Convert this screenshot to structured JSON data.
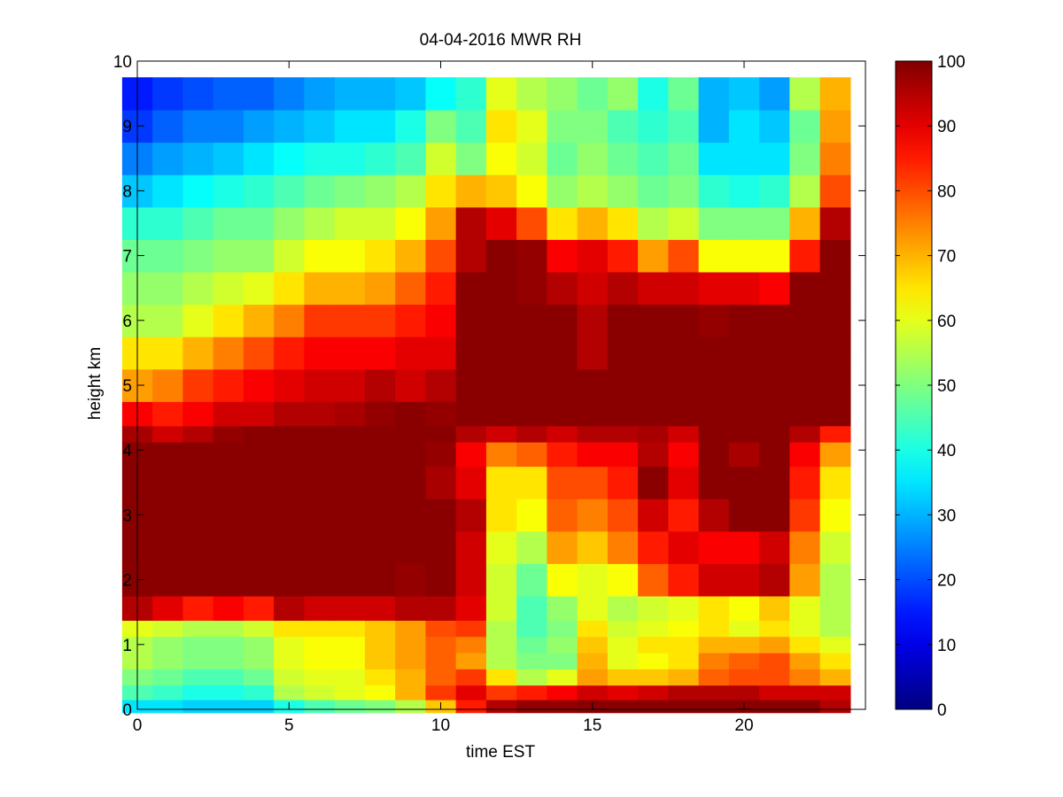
{
  "chart_data": {
    "type": "heatmap",
    "title": "04-04-2016 MWR RH",
    "xlabel": "time EST",
    "ylabel": "height km",
    "xlim": [
      0,
      24
    ],
    "ylim": [
      0,
      10
    ],
    "xticks": [
      0,
      5,
      10,
      15,
      20
    ],
    "yticks": [
      0,
      1,
      2,
      3,
      4,
      5,
      6,
      7,
      8,
      9,
      10
    ],
    "grid": false,
    "colormap": "jet",
    "colorbar": {
      "range": [
        0,
        100
      ],
      "ticks": [
        0,
        10,
        20,
        30,
        40,
        50,
        60,
        70,
        80,
        90,
        100
      ]
    },
    "x": [
      0,
      1,
      2,
      3,
      4,
      5,
      6,
      7,
      8,
      9,
      10,
      11,
      12,
      13,
      14,
      15,
      16,
      17,
      18,
      19,
      20,
      21,
      22,
      23
    ],
    "y": [
      0.05,
      0.25,
      0.5,
      0.75,
      1.0,
      1.25,
      1.5,
      2.0,
      2.5,
      3.0,
      3.5,
      4.0,
      4.25,
      4.5,
      5.0,
      5.5,
      6.0,
      6.5,
      7.0,
      7.5,
      8.0,
      8.5,
      9.0,
      9.5
    ],
    "z": [
      [
        35,
        35,
        33,
        33,
        33,
        40,
        45,
        48,
        50,
        55,
        68,
        85,
        95,
        98,
        98,
        99,
        99,
        99,
        99,
        99,
        99,
        99,
        99,
        95
      ],
      [
        45,
        43,
        40,
        40,
        42,
        55,
        58,
        60,
        62,
        70,
        82,
        90,
        82,
        85,
        88,
        92,
        90,
        92,
        95,
        95,
        95,
        92,
        92,
        92
      ],
      [
        50,
        48,
        45,
        45,
        48,
        58,
        60,
        60,
        65,
        70,
        78,
        82,
        65,
        55,
        60,
        72,
        68,
        68,
        70,
        78,
        80,
        80,
        75,
        70
      ],
      [
        55,
        52,
        50,
        50,
        52,
        60,
        62,
        62,
        68,
        72,
        78,
        72,
        55,
        50,
        50,
        70,
        60,
        62,
        65,
        75,
        78,
        80,
        72,
        65
      ],
      [
        55,
        52,
        50,
        50,
        52,
        60,
        62,
        62,
        68,
        72,
        78,
        75,
        55,
        48,
        52,
        68,
        60,
        65,
        65,
        70,
        70,
        72,
        65,
        60
      ],
      [
        60,
        58,
        55,
        55,
        58,
        65,
        65,
        65,
        68,
        72,
        80,
        82,
        55,
        45,
        50,
        65,
        58,
        60,
        62,
        65,
        60,
        65,
        60,
        55
      ],
      [
        95,
        90,
        85,
        88,
        85,
        95,
        92,
        92,
        92,
        95,
        95,
        90,
        58,
        45,
        52,
        60,
        55,
        58,
        60,
        65,
        62,
        68,
        60,
        55
      ],
      [
        99,
        99,
        99,
        99,
        99,
        99,
        99,
        99,
        99,
        98,
        99,
        92,
        58,
        48,
        62,
        60,
        62,
        78,
        85,
        92,
        92,
        95,
        72,
        55
      ],
      [
        99,
        99,
        99,
        99,
        99,
        99,
        99,
        99,
        99,
        99,
        99,
        92,
        60,
        55,
        72,
        68,
        75,
        85,
        90,
        88,
        88,
        92,
        75,
        58
      ],
      [
        99,
        99,
        99,
        99,
        99,
        99,
        99,
        99,
        99,
        99,
        99,
        95,
        65,
        62,
        78,
        75,
        80,
        92,
        85,
        95,
        99,
        99,
        82,
        62
      ],
      [
        99,
        99,
        99,
        99,
        99,
        99,
        99,
        99,
        99,
        99,
        96,
        90,
        65,
        65,
        80,
        80,
        85,
        99,
        90,
        99,
        99,
        99,
        85,
        65
      ],
      [
        99,
        99,
        99,
        99,
        99,
        99,
        99,
        99,
        99,
        99,
        98,
        88,
        75,
        78,
        85,
        88,
        88,
        95,
        88,
        99,
        96,
        99,
        88,
        72
      ],
      [
        96,
        92,
        95,
        98,
        99,
        99,
        99,
        99,
        99,
        99,
        99,
        95,
        92,
        95,
        92,
        95,
        95,
        96,
        92,
        99,
        99,
        99,
        95,
        85
      ],
      [
        88,
        85,
        88,
        92,
        92,
        95,
        95,
        96,
        98,
        99,
        98,
        99,
        99,
        99,
        99,
        99,
        99,
        99,
        99,
        99,
        99,
        99,
        99,
        99
      ],
      [
        72,
        75,
        82,
        85,
        88,
        90,
        92,
        92,
        95,
        92,
        95,
        99,
        99,
        99,
        99,
        99,
        99,
        99,
        99,
        99,
        99,
        99,
        99,
        99
      ],
      [
        65,
        65,
        70,
        75,
        80,
        85,
        88,
        88,
        88,
        90,
        90,
        99,
        99,
        99,
        99,
        95,
        99,
        99,
        99,
        99,
        99,
        99,
        99,
        99
      ],
      [
        55,
        55,
        60,
        65,
        70,
        75,
        82,
        82,
        82,
        85,
        88,
        99,
        99,
        99,
        99,
        95,
        99,
        99,
        99,
        98,
        99,
        99,
        99,
        99
      ],
      [
        52,
        52,
        55,
        58,
        60,
        65,
        70,
        70,
        72,
        78,
        85,
        99,
        99,
        98,
        95,
        92,
        95,
        92,
        92,
        90,
        90,
        88,
        99,
        99
      ],
      [
        48,
        48,
        50,
        52,
        52,
        58,
        62,
        62,
        65,
        70,
        80,
        95,
        99,
        98,
        88,
        90,
        85,
        72,
        80,
        62,
        62,
        62,
        85,
        99
      ],
      [
        42,
        42,
        45,
        48,
        48,
        52,
        55,
        58,
        58,
        62,
        72,
        95,
        90,
        80,
        65,
        70,
        65,
        55,
        58,
        50,
        50,
        50,
        70,
        95
      ],
      [
        32,
        35,
        38,
        40,
        42,
        45,
        48,
        50,
        52,
        55,
        65,
        70,
        68,
        62,
        52,
        55,
        52,
        48,
        50,
        42,
        40,
        42,
        55,
        80
      ],
      [
        25,
        28,
        30,
        32,
        35,
        38,
        40,
        40,
        42,
        45,
        58,
        50,
        62,
        58,
        48,
        52,
        48,
        45,
        48,
        35,
        35,
        35,
        50,
        75
      ],
      [
        18,
        22,
        25,
        25,
        28,
        30,
        32,
        35,
        35,
        40,
        50,
        45,
        65,
        60,
        50,
        50,
        45,
        42,
        45,
        30,
        35,
        32,
        48,
        72
      ],
      [
        15,
        18,
        20,
        22,
        22,
        25,
        28,
        30,
        30,
        32,
        38,
        42,
        60,
        55,
        52,
        48,
        52,
        40,
        48,
        30,
        32,
        28,
        55,
        70
      ]
    ]
  }
}
